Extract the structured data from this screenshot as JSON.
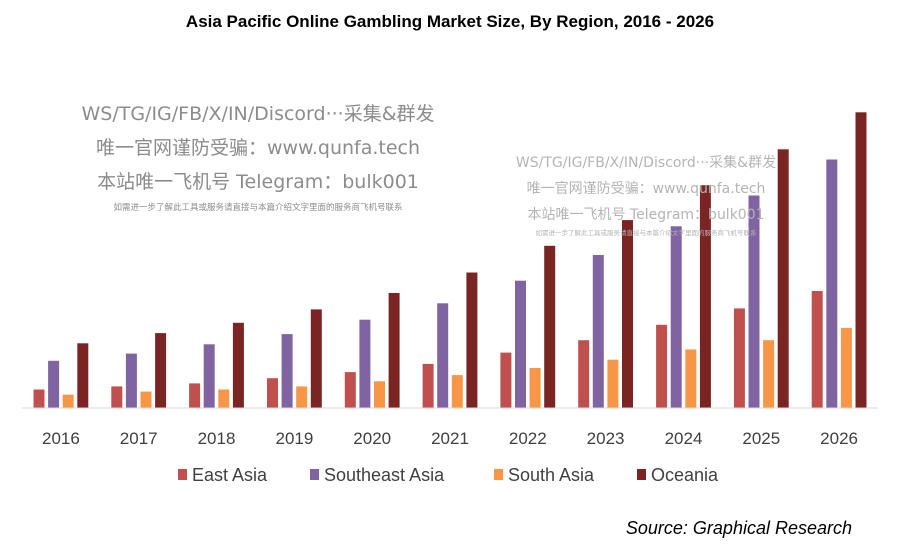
{
  "chart_data": {
    "type": "bar",
    "title": "Asia Pacific Online Gambling Market Size, By Region, 2016  -  2026",
    "categories": [
      "2016",
      "2017",
      "2018",
      "2019",
      "2020",
      "2021",
      "2022",
      "2023",
      "2024",
      "2025",
      "2026"
    ],
    "series": [
      {
        "name": "East Asia",
        "color": "#c0504d",
        "values": [
          18,
          21,
          24,
          29,
          35,
          43,
          54,
          66,
          81,
          97,
          114
        ]
      },
      {
        "name": "Southeast Asia",
        "color": "#8064a2",
        "values": [
          46,
          53,
          62,
          72,
          86,
          102,
          124,
          149,
          177,
          207,
          242
        ]
      },
      {
        "name": "South Asia",
        "color": "#f79646",
        "values": [
          13,
          16,
          18,
          21,
          26,
          32,
          39,
          47,
          57,
          66,
          78
        ]
      },
      {
        "name": "Oceania",
        "color": "#7b2424",
        "values": [
          63,
          73,
          83,
          96,
          112,
          132,
          158,
          183,
          217,
          252,
          288
        ]
      }
    ],
    "xlabel": "",
    "ylabel": "",
    "ylim": [
      0,
      300
    ],
    "grid": false,
    "legend_position": "bottom"
  },
  "source": "Source: Graphical Research",
  "watermark_1": {
    "line1": "WS/TG/IG/FB/X/IN/Discord···采集&群发",
    "line2": "唯一官网谨防受骗：www.qunfa.tech",
    "line3": "本站唯一飞机号 Telegram：bulk001",
    "line4": "如需进一步了解此工具或服务请直接与本篇介绍文字里面的服务商飞机号联系"
  },
  "watermark_2": {
    "line1": "WS/TG/IG/FB/X/IN/Discord···采集&群发",
    "line2": "唯一官网谨防受骗：www.qunfa.tech",
    "line3": "本站唯一飞机号 Telegram：bulk001",
    "line4": "如需进一步了解此工具或服务请直接与本篇介绍文字里面的服务商飞机号联系"
  }
}
